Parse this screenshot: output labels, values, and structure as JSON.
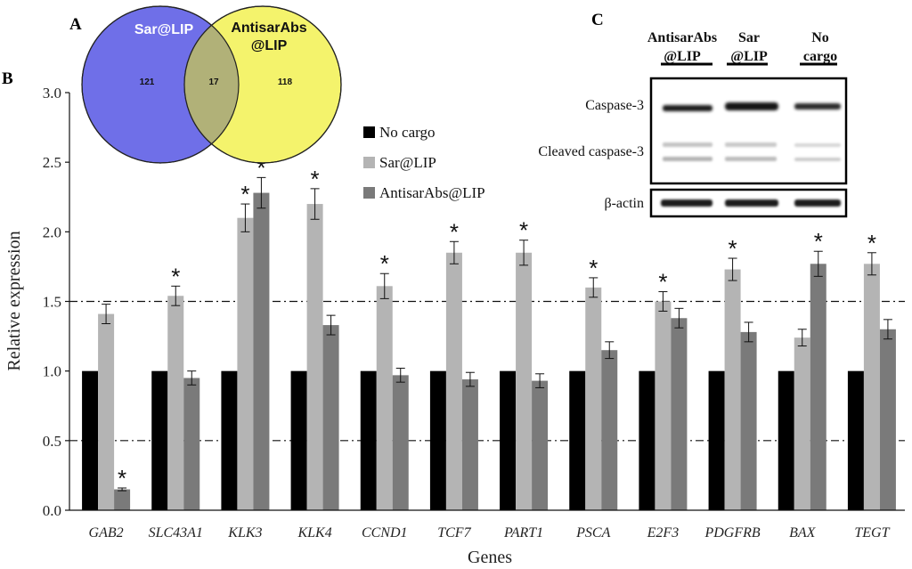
{
  "panels": {
    "venn_letter": "A",
    "chart_letter": "B",
    "blot_letter": "C"
  },
  "venn": {
    "left_label": "Sar@LIP",
    "right_label_line1": "AntisarAbs",
    "right_label_line2": "@LIP",
    "left_only": "121",
    "overlap": "17",
    "right_only": "118",
    "left_color": "#6f6fe8",
    "right_color": "#f4f36c",
    "overlap_color": "#b1b178"
  },
  "blot": {
    "lane_headers": [
      {
        "line1": "AntisarAbs",
        "line2": "@LIP"
      },
      {
        "line1": "Sar",
        "line2": "@LIP"
      },
      {
        "line1": "No",
        "line2": "cargo"
      }
    ],
    "row_labels": {
      "caspase3": "Caspase-3",
      "cleaved": "Cleaved caspase-3",
      "actin": "β-actin"
    }
  },
  "chart_data": {
    "type": "bar",
    "xlabel": "Genes",
    "ylabel": "Relative expression",
    "ylim": [
      0,
      3
    ],
    "yticks": [
      "0.0",
      "0.5",
      "1.0",
      "1.5",
      "2.0",
      "2.5",
      "3.0"
    ],
    "reference_lines": [
      0.5,
      1.5
    ],
    "legend_position": "upper-middle",
    "categories": [
      "GAB2",
      "SLC43A1",
      "KLK3",
      "KLK4",
      "CCND1",
      "TCF7",
      "PART1",
      "PSCA",
      "E2F3",
      "PDGFRB",
      "BAX",
      "TEGT"
    ],
    "series": [
      {
        "name": "No cargo",
        "color": "#000000",
        "values": [
          1.0,
          1.0,
          1.0,
          1.0,
          1.0,
          1.0,
          1.0,
          1.0,
          1.0,
          1.0,
          1.0,
          1.0
        ],
        "errors": [
          0,
          0,
          0,
          0,
          0,
          0,
          0,
          0,
          0,
          0,
          0,
          0
        ],
        "significant": [
          false,
          false,
          false,
          false,
          false,
          false,
          false,
          false,
          false,
          false,
          false,
          false
        ]
      },
      {
        "name": "Sar@LIP",
        "color": "#b4b4b4",
        "values": [
          1.41,
          1.54,
          2.1,
          2.2,
          1.61,
          1.85,
          1.85,
          1.6,
          1.5,
          1.73,
          1.24,
          1.77
        ],
        "errors": [
          0.07,
          0.07,
          0.1,
          0.11,
          0.09,
          0.08,
          0.09,
          0.07,
          0.07,
          0.08,
          0.06,
          0.08
        ],
        "significant": [
          false,
          true,
          true,
          true,
          true,
          true,
          true,
          true,
          true,
          true,
          false,
          true
        ]
      },
      {
        "name": "AntisarAbs@LIP",
        "color": "#7a7a7a",
        "values": [
          0.15,
          0.95,
          2.28,
          1.33,
          0.97,
          0.94,
          0.93,
          1.15,
          1.38,
          1.28,
          1.77,
          1.3
        ],
        "errors": [
          0.01,
          0.05,
          0.11,
          0.07,
          0.05,
          0.05,
          0.05,
          0.06,
          0.07,
          0.07,
          0.09,
          0.07
        ],
        "significant": [
          true,
          false,
          true,
          false,
          false,
          false,
          false,
          false,
          false,
          false,
          true,
          false
        ]
      }
    ],
    "significance_marker": "*"
  }
}
